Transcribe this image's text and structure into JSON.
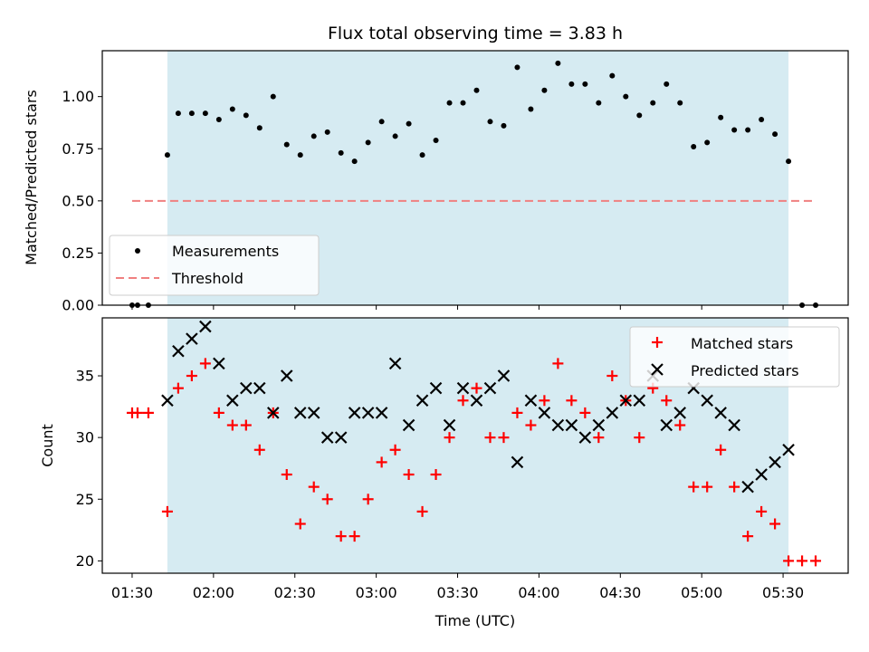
{
  "chart_data": [
    {
      "type": "scatter",
      "title": "Flux total observing time = 3.83 h",
      "xlabel": "",
      "ylabel": "Matched/Predicted stars",
      "ylim": [
        0,
        1.22
      ],
      "yticks": [
        "0.00",
        "0.25",
        "0.50",
        "0.75",
        "1.00"
      ],
      "shaded_span": {
        "start": "01:43",
        "end": "05:32",
        "color": "#add8e6"
      },
      "legend": {
        "position": "lower-left",
        "entries": [
          "Measurements",
          "Threshold"
        ]
      },
      "series": [
        {
          "name": "Measurements",
          "marker": "dot",
          "color": "#000000",
          "x": [
            "01:30",
            "01:32",
            "01:36",
            "01:43",
            "01:47",
            "01:52",
            "01:57",
            "02:02",
            "02:07",
            "02:12",
            "02:17",
            "02:22",
            "02:27",
            "02:32",
            "02:37",
            "02:42",
            "02:47",
            "02:52",
            "02:57",
            "03:02",
            "03:07",
            "03:12",
            "03:17",
            "03:22",
            "03:27",
            "03:32",
            "03:37",
            "03:42",
            "03:47",
            "03:52",
            "03:57",
            "04:02",
            "04:07",
            "04:12",
            "04:17",
            "04:22",
            "04:27",
            "04:32",
            "04:37",
            "04:42",
            "04:47",
            "04:52",
            "04:57",
            "05:02",
            "05:07",
            "05:12",
            "05:17",
            "05:22",
            "05:27",
            "05:32",
            "05:37",
            "05:42"
          ],
          "y": [
            0.0,
            0.0,
            0.0,
            0.72,
            0.92,
            0.92,
            0.92,
            0.89,
            0.94,
            0.91,
            0.85,
            1.0,
            0.77,
            0.72,
            0.81,
            0.83,
            0.73,
            0.69,
            0.78,
            0.88,
            0.81,
            0.87,
            0.72,
            0.79,
            0.97,
            0.97,
            1.03,
            0.88,
            0.86,
            1.14,
            0.94,
            1.03,
            1.16,
            1.06,
            1.06,
            0.97,
            1.1,
            1.0,
            0.91,
            0.97,
            1.06,
            0.97,
            0.76,
            0.78,
            0.9,
            0.84,
            0.84,
            0.89,
            0.82,
            0.69,
            0.0,
            0.0
          ]
        },
        {
          "name": "Threshold",
          "style": "dashed",
          "color": "#f08080",
          "x": [
            "01:30",
            "05:42"
          ],
          "y": [
            0.5,
            0.5
          ]
        }
      ]
    },
    {
      "type": "scatter",
      "title": "",
      "xlabel": "Time (UTC)",
      "ylabel": "Count",
      "ylim": [
        19,
        39.7
      ],
      "yticks": [
        "20",
        "25",
        "30",
        "35"
      ],
      "xticks": [
        "01:30",
        "02:00",
        "02:30",
        "03:00",
        "03:30",
        "04:00",
        "04:30",
        "05:00",
        "05:30"
      ],
      "shaded_span": {
        "start": "01:43",
        "end": "05:32",
        "color": "#add8e6"
      },
      "legend": {
        "position": "upper-right",
        "entries": [
          "Matched stars",
          "Predicted stars"
        ]
      },
      "series": [
        {
          "name": "Matched stars",
          "marker": "plus",
          "color": "#ff0000",
          "x": [
            "01:30",
            "01:32",
            "01:36",
            "01:43",
            "01:47",
            "01:52",
            "01:57",
            "02:02",
            "02:07",
            "02:12",
            "02:17",
            "02:22",
            "02:27",
            "02:32",
            "02:37",
            "02:42",
            "02:47",
            "02:52",
            "02:57",
            "03:02",
            "03:07",
            "03:12",
            "03:17",
            "03:22",
            "03:27",
            "03:32",
            "03:37",
            "03:42",
            "03:47",
            "03:52",
            "03:57",
            "04:02",
            "04:07",
            "04:12",
            "04:17",
            "04:22",
            "04:27",
            "04:32",
            "04:37",
            "04:42",
            "04:47",
            "04:52",
            "04:57",
            "05:02",
            "05:07",
            "05:12",
            "05:17",
            "05:22",
            "05:27",
            "05:32",
            "05:37",
            "05:42"
          ],
          "y": [
            32,
            32,
            32,
            24,
            34,
            35,
            36,
            32,
            31,
            31,
            29,
            32,
            27,
            23,
            26,
            25,
            22,
            22,
            25,
            28,
            29,
            27,
            24,
            27,
            30,
            33,
            34,
            30,
            30,
            32,
            31,
            33,
            36,
            33,
            32,
            30,
            35,
            33,
            30,
            34,
            33,
            31,
            26,
            26,
            29,
            26,
            22,
            24,
            23,
            20,
            20,
            20
          ]
        },
        {
          "name": "Predicted stars",
          "marker": "x",
          "color": "#000000",
          "x": [
            "01:43",
            "01:47",
            "01:52",
            "01:57",
            "02:02",
            "02:07",
            "02:12",
            "02:17",
            "02:22",
            "02:27",
            "02:32",
            "02:37",
            "02:42",
            "02:47",
            "02:52",
            "02:57",
            "03:02",
            "03:07",
            "03:12",
            "03:17",
            "03:22",
            "03:27",
            "03:32",
            "03:37",
            "03:42",
            "03:47",
            "03:52",
            "03:57",
            "04:02",
            "04:07",
            "04:12",
            "04:17",
            "04:22",
            "04:27",
            "04:32",
            "04:37",
            "04:42",
            "04:47",
            "04:52",
            "04:57",
            "05:02",
            "05:07",
            "05:12",
            "05:17",
            "05:22",
            "05:27",
            "05:32"
          ],
          "y": [
            33,
            37,
            38,
            39,
            36,
            33,
            34,
            34,
            32,
            35,
            32,
            32,
            30,
            30,
            32,
            32,
            32,
            36,
            31,
            33,
            34,
            31,
            34,
            33,
            34,
            35,
            28,
            33,
            32,
            31,
            31,
            30,
            31,
            32,
            33,
            33,
            35,
            31,
            32,
            34,
            33,
            32,
            31,
            26,
            27,
            28,
            29
          ]
        }
      ]
    }
  ]
}
